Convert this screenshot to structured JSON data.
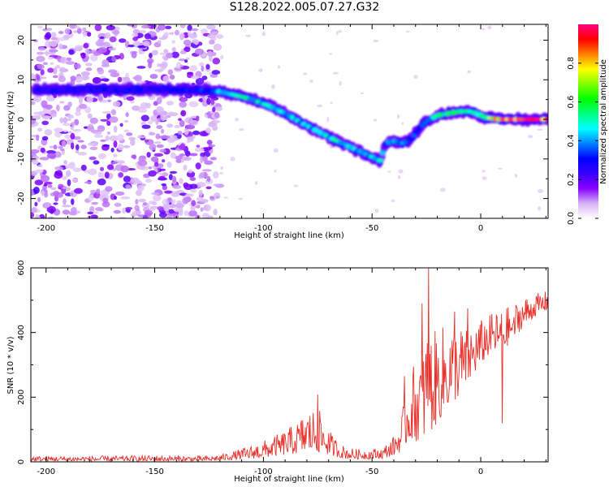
{
  "title": "S128.2022.005.07.27.G32",
  "chart_data": [
    {
      "type": "heatmap",
      "xlabel": "Height of straight line (km)",
      "ylabel": "Frequency (Hz)",
      "xlim": [
        -207,
        31
      ],
      "ylim": [
        -25,
        24
      ],
      "xticks": [
        -200,
        -150,
        -100,
        -50,
        0
      ],
      "yticks": [
        -20,
        -10,
        0,
        10,
        20
      ],
      "colorbar": {
        "label": "Normalized spectral amplitude",
        "range": [
          0,
          1
        ],
        "ticks": [
          "0.0",
          "0.2",
          "0.4",
          "0.6",
          "0.8"
        ],
        "colormap": [
          "#ffffff",
          "#d7b4f5",
          "#8a00ff",
          "#3a00ff",
          "#0000ff",
          "#0080ff",
          "#00ffff",
          "#00ff80",
          "#00ff00",
          "#80ff00",
          "#ffff00",
          "#ff8000",
          "#ff0000",
          "#ff0080"
        ]
      },
      "ridge": {
        "x": [
          -205,
          -190,
          -175,
          -160,
          -145,
          -130,
          -120,
          -112,
          -105,
          -98,
          -90,
          -82,
          -75,
          -68,
          -60,
          -52,
          -46,
          -44,
          -40,
          -36,
          -32,
          -28,
          -25,
          -20,
          -15,
          -10,
          -5,
          -2,
          2,
          8,
          15,
          22,
          31
        ],
        "y": [
          7.5,
          7.5,
          7.5,
          7.5,
          7.5,
          7.5,
          7.0,
          6.0,
          5.0,
          3.5,
          1.5,
          -1.0,
          -3.0,
          -5.0,
          -7.0,
          -9.0,
          -10.5,
          -6.0,
          -5.5,
          -6.0,
          -5.0,
          -2.0,
          -0.5,
          1.0,
          1.5,
          2.0,
          2.0,
          1.5,
          0.5,
          0.0,
          0.0,
          0.0,
          0.0
        ],
        "amplitude": [
          0.3,
          0.28,
          0.3,
          0.3,
          0.3,
          0.3,
          0.45,
          0.55,
          0.5,
          0.5,
          0.45,
          0.45,
          0.45,
          0.5,
          0.45,
          0.45,
          0.55,
          0.35,
          0.45,
          0.4,
          0.35,
          0.3,
          0.4,
          0.55,
          0.6,
          0.65,
          0.55,
          0.5,
          0.65,
          0.85,
          0.95,
          1.0,
          1.0
        ]
      }
    },
    {
      "type": "line",
      "xlabel": "Height of straight line (km)",
      "ylabel": "SNR (10 * v/v)",
      "xlim": [
        -207,
        31
      ],
      "ylim": [
        0,
        600
      ],
      "xticks": [
        -200,
        -150,
        -100,
        -50,
        0
      ],
      "yticks": [
        0,
        200,
        400,
        600
      ],
      "color": "#e8302a",
      "envelope": {
        "x": [
          -207,
          -180,
          -150,
          -125,
          -118,
          -108,
          -100,
          -92,
          -85,
          -80,
          -75,
          -72,
          -68,
          -63,
          -58,
          -52,
          -45,
          -40,
          -37,
          -35,
          -32,
          -28,
          -25,
          -22,
          -18,
          -15,
          -10,
          -5,
          0,
          5,
          10,
          15,
          20,
          25,
          31
        ],
        "low": [
          2,
          2,
          2,
          2,
          5,
          8,
          12,
          20,
          25,
          30,
          30,
          25,
          18,
          10,
          8,
          8,
          10,
          20,
          30,
          50,
          70,
          60,
          80,
          100,
          140,
          170,
          200,
          250,
          300,
          340,
          340,
          380,
          420,
          450,
          470
        ],
        "high": [
          18,
          18,
          20,
          18,
          25,
          45,
          65,
          90,
          120,
          160,
          170,
          130,
          80,
          50,
          40,
          40,
          45,
          80,
          130,
          200,
          280,
          360,
          420,
          400,
          420,
          430,
          420,
          420,
          440,
          460,
          470,
          490,
          510,
          520,
          530
        ]
      },
      "spikes": [
        {
          "x": -75,
          "y": 208
        },
        {
          "x": -24,
          "y": 598
        },
        {
          "x": -27,
          "y": 490
        },
        {
          "x": -35,
          "y": 265
        },
        {
          "x": -12,
          "y": 465
        },
        {
          "x": -6,
          "y": 475
        },
        {
          "x": 10,
          "y": 120
        },
        {
          "x": 15,
          "y": 430
        }
      ]
    }
  ]
}
